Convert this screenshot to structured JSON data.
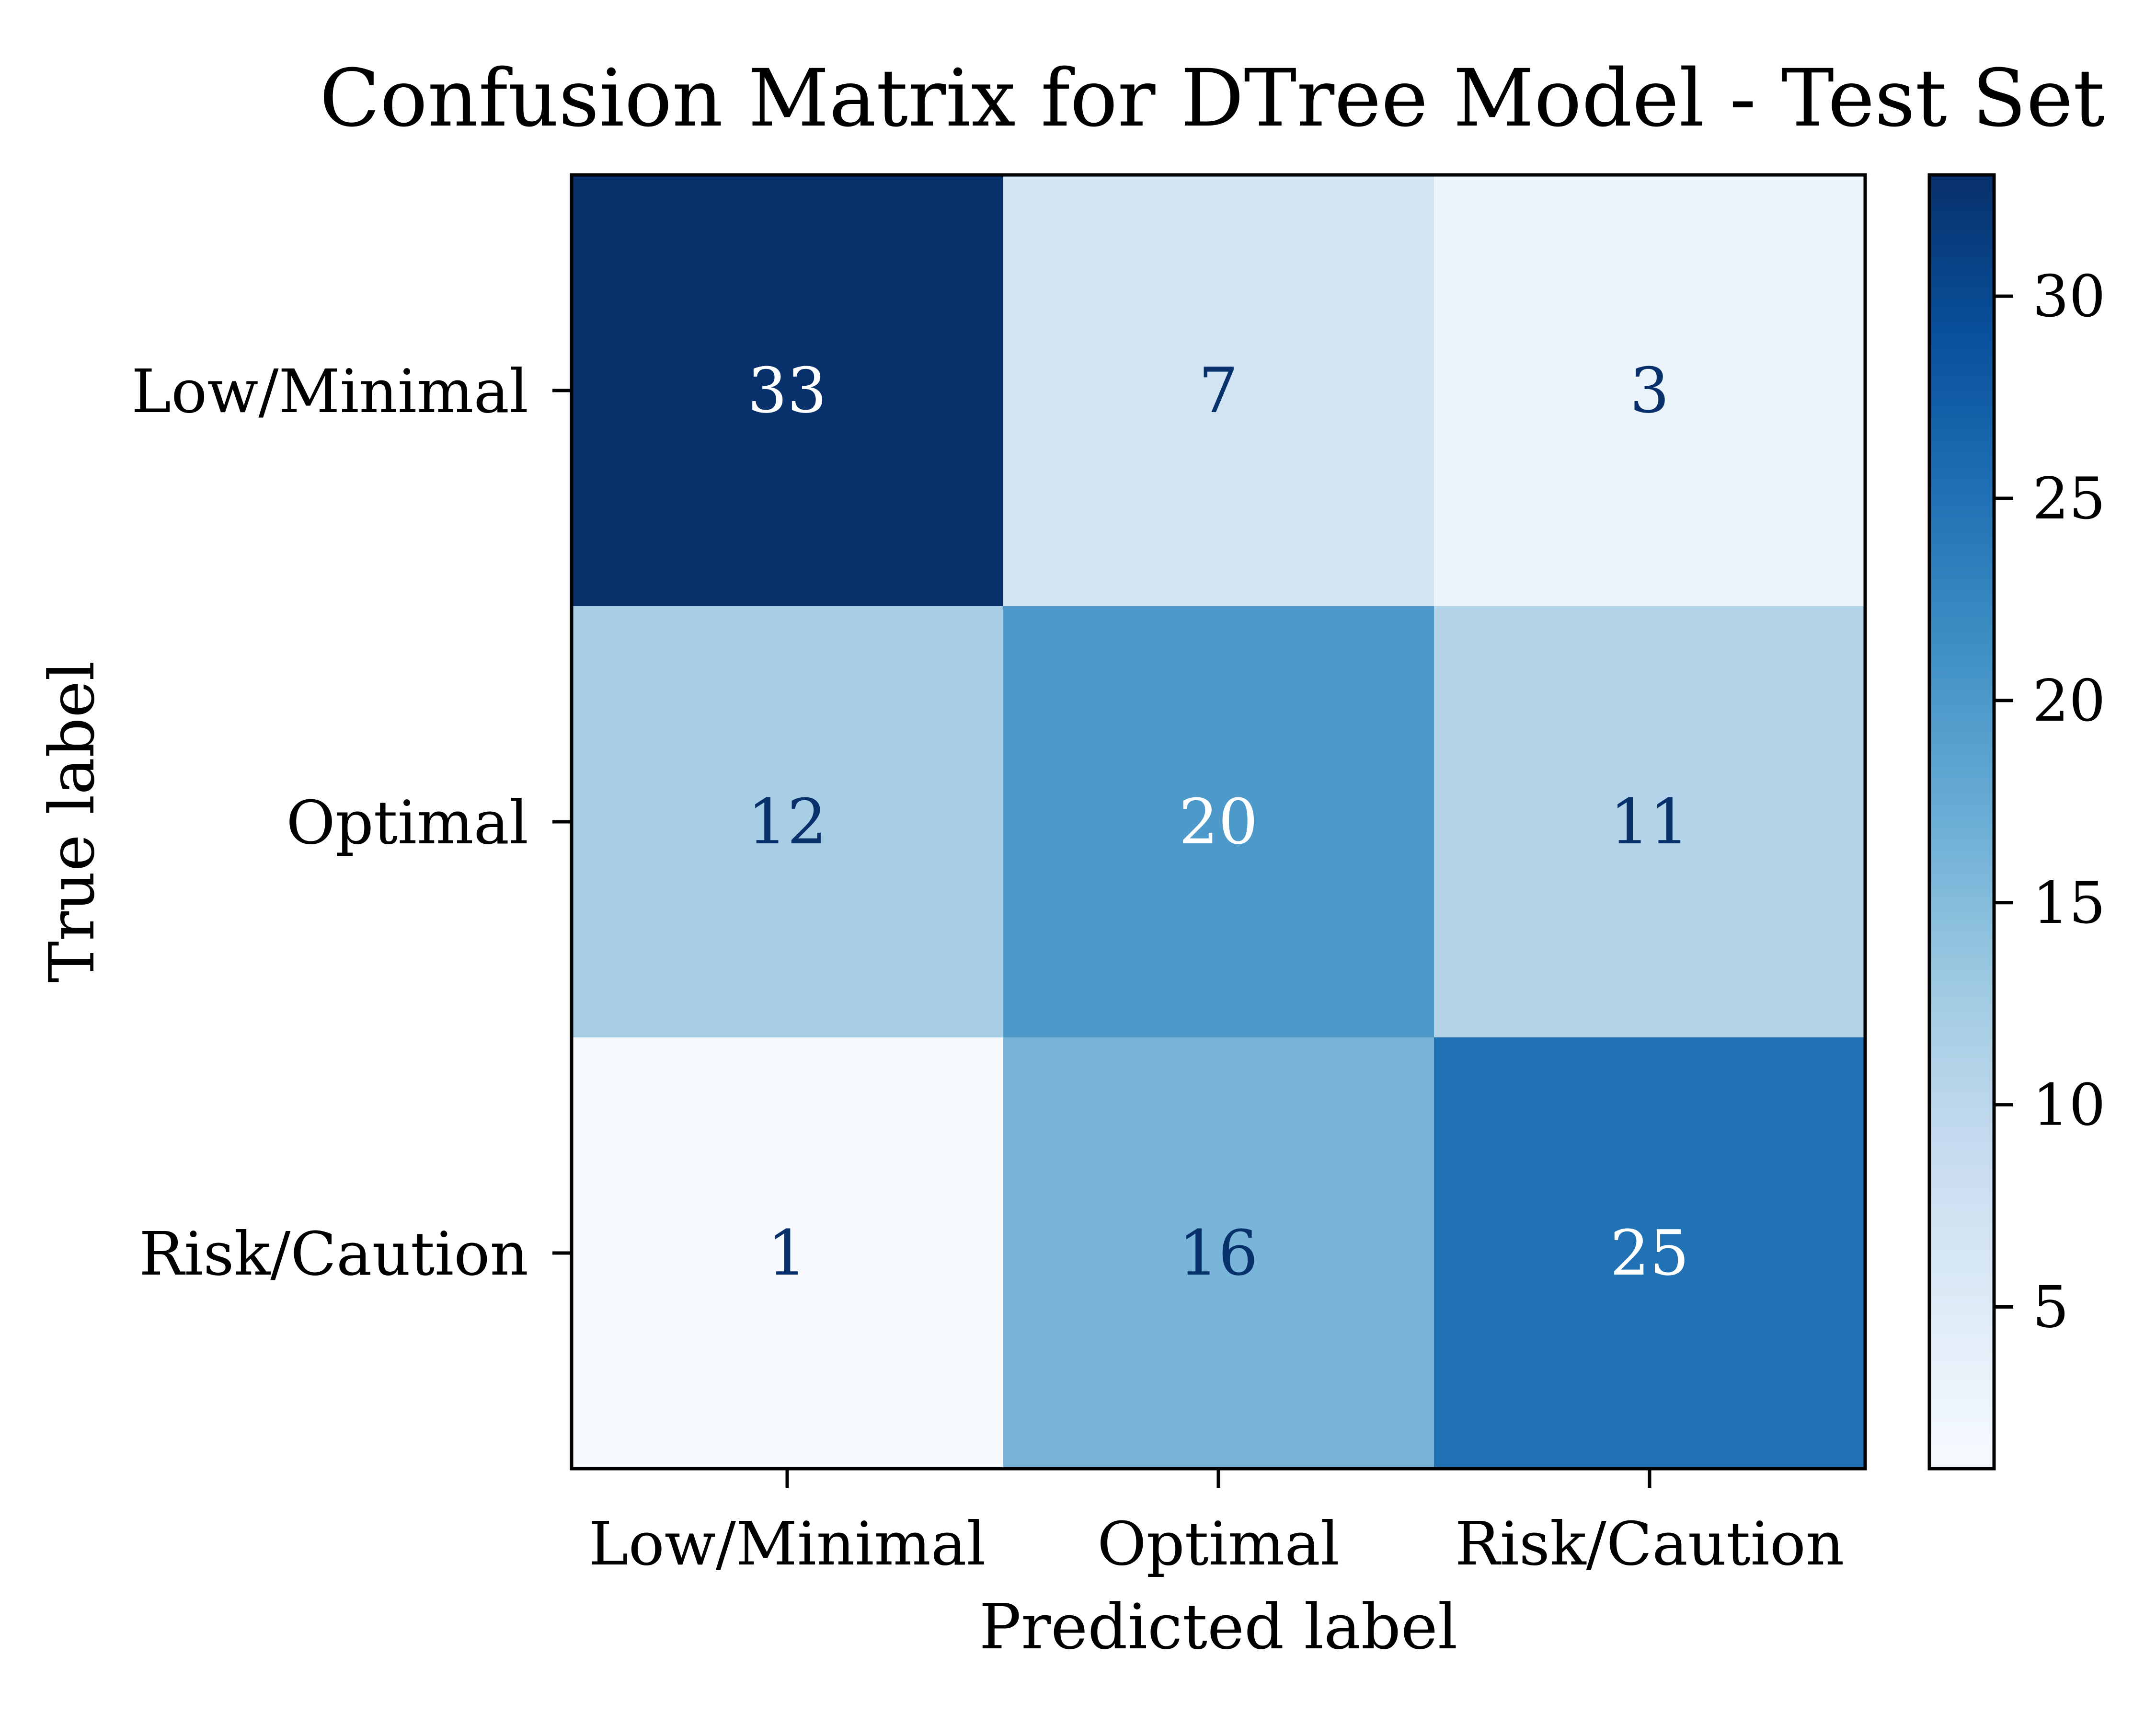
{
  "chart_data": {
    "type": "heatmap",
    "title": "Confusion Matrix for DTree Model - Test Set",
    "xlabel": "Predicted label",
    "ylabel": "True label",
    "x_categories": [
      "Low/Minimal",
      "Optimal",
      "Risk/Caution"
    ],
    "y_categories": [
      "Low/Minimal",
      "Optimal",
      "Risk/Caution"
    ],
    "matrix": [
      [
        33,
        7,
        3
      ],
      [
        12,
        20,
        11
      ],
      [
        1,
        16,
        25
      ]
    ],
    "colormap": "Blues",
    "colorbar": {
      "range": [
        1,
        33
      ],
      "ticks": [
        5,
        10,
        15,
        20,
        25,
        30
      ]
    },
    "grid": false,
    "colors": {
      "text_dark_cell": "#ffffff",
      "text_light_cell": "#08306b",
      "axis": "#000000"
    }
  }
}
